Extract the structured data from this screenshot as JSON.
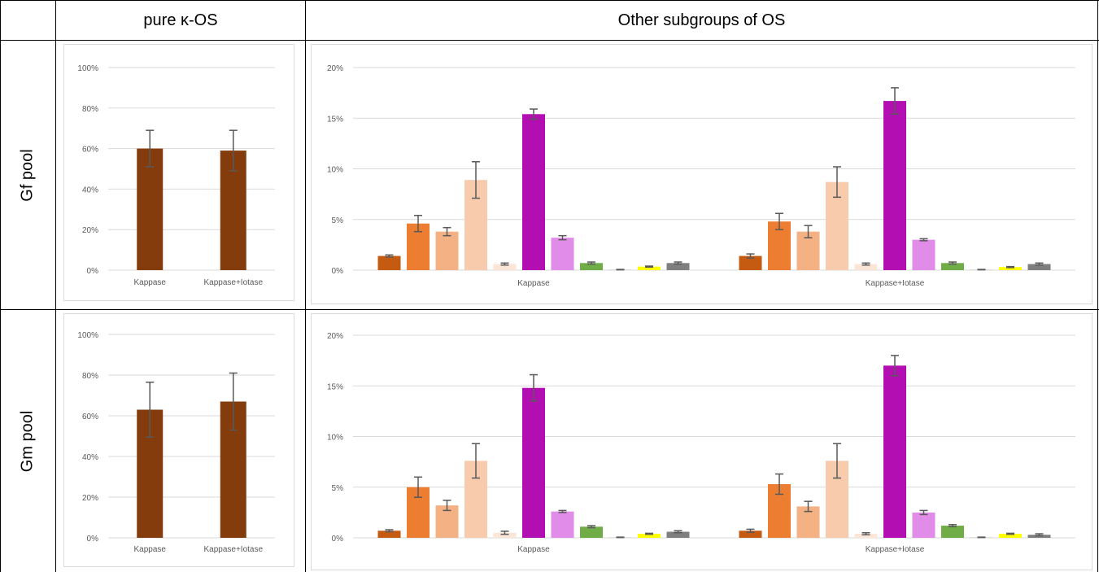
{
  "table": {
    "col_headers": [
      "pure κ-OS",
      "Other subgroups of OS"
    ],
    "row_headers": [
      "Gf pool",
      "Gm pool"
    ]
  },
  "colors": {
    "pure": "#843c0c",
    "subgroups": [
      "#c55a11",
      "#ed7d31",
      "#f4b183",
      "#f8cbad",
      "#fbe5d6",
      "#b30eb1",
      "#e28ce9",
      "#70ad47",
      "#c9c9c9",
      "#ffff00",
      "#7f7f7f"
    ],
    "error_bar": "#595959",
    "grid": "#d9d9d9",
    "tick_text": "#595959"
  },
  "chart_data": [
    {
      "id": "gf-pure",
      "type": "bar",
      "categories": [
        "Kappase",
        "Kappase+Iotase"
      ],
      "series": [
        {
          "values": [
            60,
            59
          ],
          "errors": [
            9,
            10
          ]
        }
      ],
      "ylim": [
        0,
        100
      ],
      "yticks": [
        "0%",
        "20%",
        "40%",
        "60%",
        "80%",
        "100%"
      ],
      "grid": true
    },
    {
      "id": "gf-other",
      "type": "bar",
      "categories": [
        "Kappase",
        "Kappase+Iotase"
      ],
      "series": [
        {
          "values": [
            1.4,
            1.4
          ],
          "errors": [
            0.1,
            0.2
          ]
        },
        {
          "values": [
            4.6,
            4.8
          ],
          "errors": [
            0.8,
            0.8
          ]
        },
        {
          "values": [
            3.8,
            3.8
          ],
          "errors": [
            0.4,
            0.6
          ]
        },
        {
          "values": [
            8.9,
            8.7
          ],
          "errors": [
            1.8,
            1.5
          ]
        },
        {
          "values": [
            0.6,
            0.6
          ],
          "errors": [
            0.1,
            0.1
          ]
        },
        {
          "values": [
            15.4,
            16.7
          ],
          "errors": [
            0.5,
            1.3
          ]
        },
        {
          "values": [
            3.2,
            3.0
          ],
          "errors": [
            0.2,
            0.1
          ]
        },
        {
          "values": [
            0.7,
            0.7
          ],
          "errors": [
            0.1,
            0.1
          ]
        },
        {
          "values": [
            0.05,
            0.05
          ],
          "errors": [
            0.02,
            0.02
          ]
        },
        {
          "values": [
            0.35,
            0.3
          ],
          "errors": [
            0.05,
            0.05
          ]
        },
        {
          "values": [
            0.7,
            0.6
          ],
          "errors": [
            0.1,
            0.1
          ]
        }
      ],
      "ylim": [
        0,
        20
      ],
      "yticks": [
        "0%",
        "5%",
        "10%",
        "15%",
        "20%"
      ],
      "grid": true
    },
    {
      "id": "gm-pure",
      "type": "bar",
      "categories": [
        "Kappase",
        "Kappase+Iotase"
      ],
      "series": [
        {
          "values": [
            63,
            67
          ],
          "errors": [
            13.5,
            14
          ]
        }
      ],
      "ylim": [
        0,
        100
      ],
      "yticks": [
        "0%",
        "20%",
        "40%",
        "60%",
        "80%",
        "100%"
      ],
      "grid": true
    },
    {
      "id": "gm-other",
      "type": "bar",
      "categories": [
        "Kappase",
        "Kappase+Iotase"
      ],
      "series": [
        {
          "values": [
            0.7,
            0.7
          ],
          "errors": [
            0.1,
            0.15
          ]
        },
        {
          "values": [
            5.0,
            5.3
          ],
          "errors": [
            1.0,
            1.0
          ]
        },
        {
          "values": [
            3.2,
            3.1
          ],
          "errors": [
            0.5,
            0.5
          ]
        },
        {
          "values": [
            7.6,
            7.6
          ],
          "errors": [
            1.7,
            1.7
          ]
        },
        {
          "values": [
            0.5,
            0.4
          ],
          "errors": [
            0.15,
            0.1
          ]
        },
        {
          "values": [
            14.8,
            17.0
          ],
          "errors": [
            1.3,
            1.0
          ]
        },
        {
          "values": [
            2.6,
            2.5
          ],
          "errors": [
            0.1,
            0.2
          ]
        },
        {
          "values": [
            1.1,
            1.2
          ],
          "errors": [
            0.1,
            0.1
          ]
        },
        {
          "values": [
            0.05,
            0.05
          ],
          "errors": [
            0.02,
            0.02
          ]
        },
        {
          "values": [
            0.4,
            0.4
          ],
          "errors": [
            0.05,
            0.05
          ]
        },
        {
          "values": [
            0.6,
            0.3
          ],
          "errors": [
            0.1,
            0.1
          ]
        }
      ],
      "ylim": [
        0,
        20
      ],
      "yticks": [
        "0%",
        "5%",
        "10%",
        "15%",
        "20%"
      ],
      "grid": true
    }
  ]
}
